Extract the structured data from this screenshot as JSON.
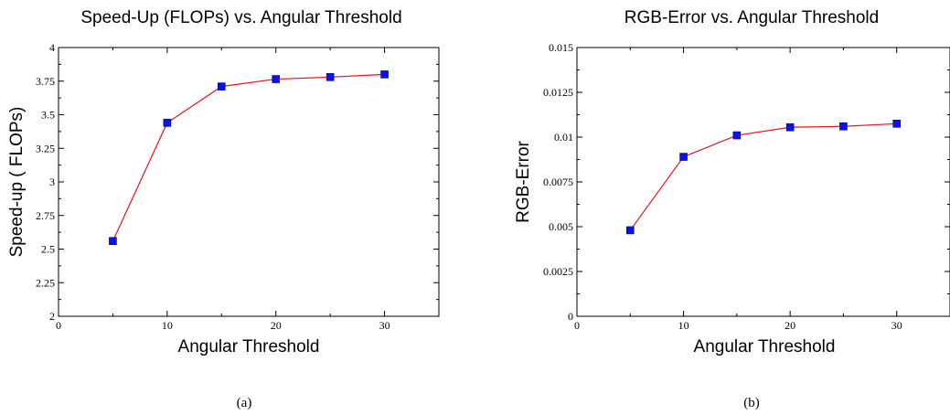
{
  "chart_data": [
    {
      "type": "line",
      "title": "Speed-Up (FLOPs) vs. Angular Threshold",
      "xlabel": "Angular  Threshold",
      "ylabel": "Speed-up ( FLOPs)",
      "xlim": [
        0,
        35
      ],
      "ylim": [
        2,
        4
      ],
      "xticks": [
        "0",
        "10",
        "20",
        "30"
      ],
      "yticks": [
        "2",
        "2.25",
        "2.5",
        "2.75",
        "3",
        "3.25",
        "3.5",
        "3.75",
        "4"
      ],
      "series": [
        {
          "x": [
            5,
            10,
            15,
            20,
            25,
            30
          ],
          "values": [
            2.56,
            3.44,
            3.71,
            3.765,
            3.78,
            3.8
          ]
        }
      ],
      "grid": false,
      "line_color": "#e8141b",
      "marker_color": "#0a12e6",
      "caption": "(a)"
    },
    {
      "type": "line",
      "title": "RGB-Error vs. Angular Threshold",
      "xlabel": "Angular Threshold",
      "ylabel": "RGB-Error",
      "xlim": [
        0,
        35
      ],
      "ylim": [
        0,
        0.015
      ],
      "xticks": [
        "0",
        "10",
        "20",
        "30"
      ],
      "yticks": [
        "0",
        "0.0025",
        "0.005",
        "0.0075",
        "0.01",
        "0.0125",
        "0.015"
      ],
      "series": [
        {
          "x": [
            5,
            10,
            15,
            20,
            25,
            30
          ],
          "values": [
            0.0048,
            0.0089,
            0.0101,
            0.01055,
            0.0106,
            0.01075
          ]
        }
      ],
      "grid": false,
      "line_color": "#e8141b",
      "marker_color": "#0a12e6",
      "caption": "(b)"
    }
  ]
}
